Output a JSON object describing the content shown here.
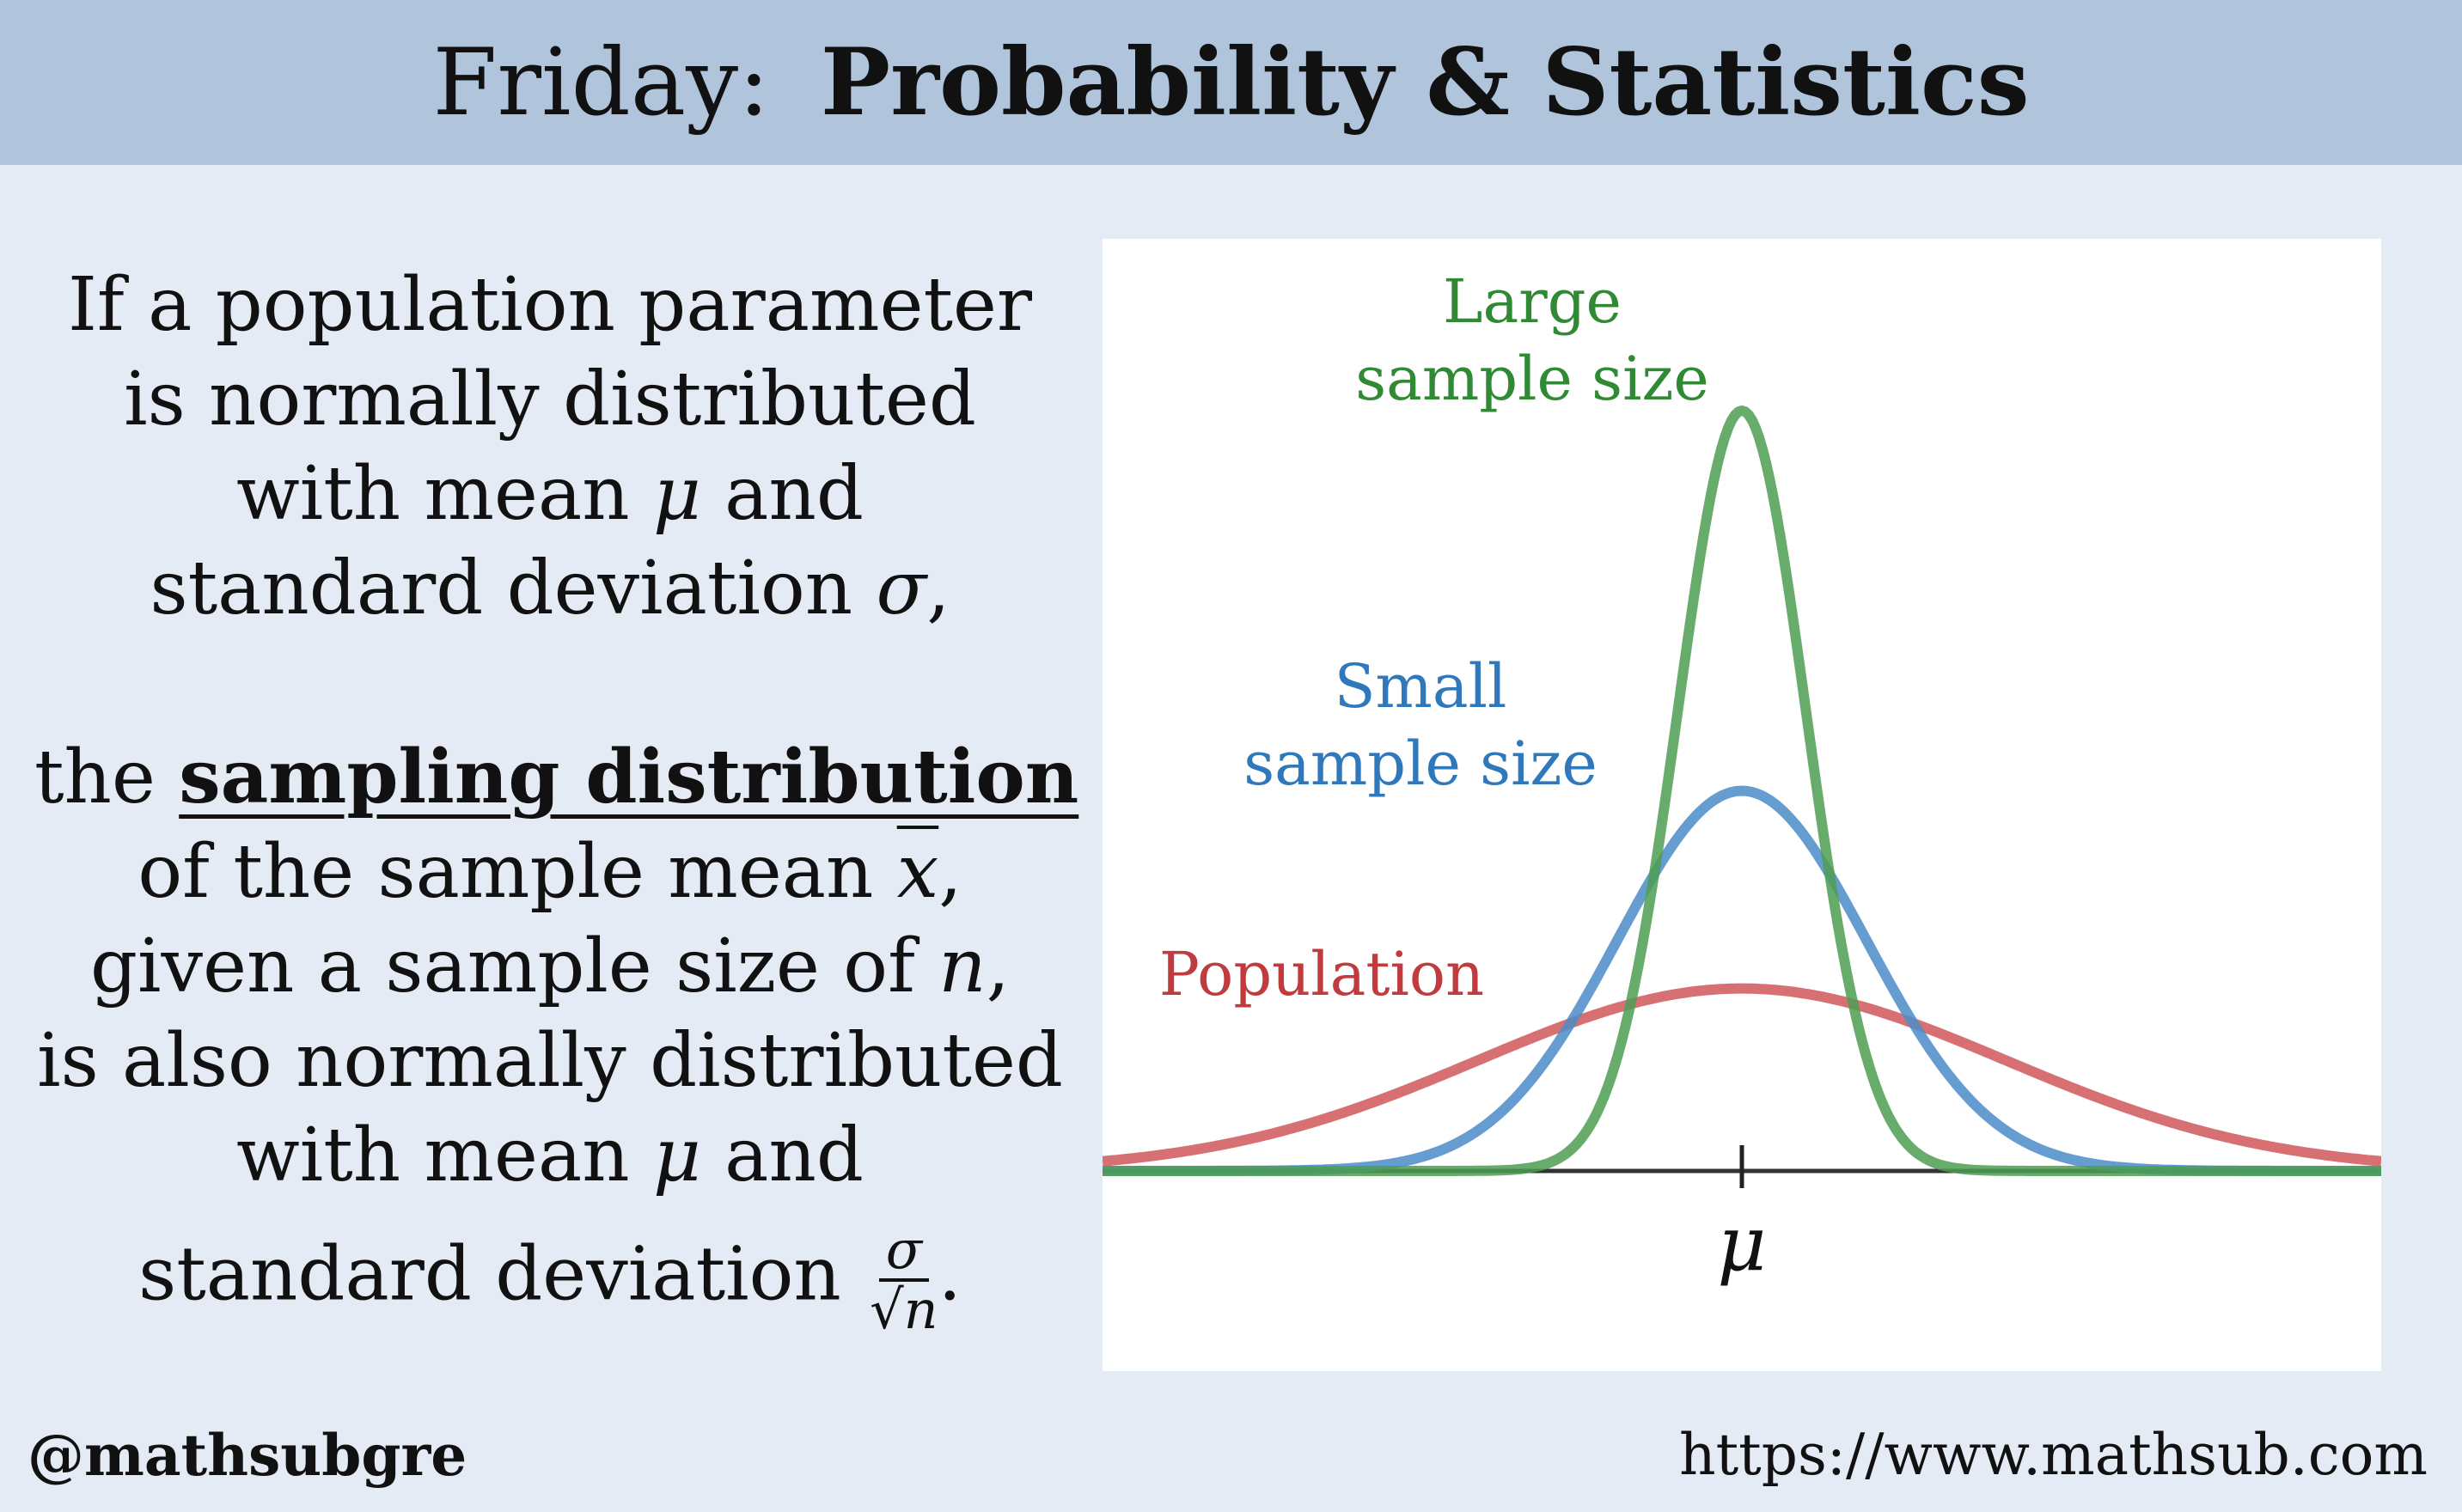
{
  "header": {
    "day": "Friday:",
    "topic": "Probability & Statistics"
  },
  "text": {
    "l1": "If a population parameter",
    "l2": "is normally distributed",
    "l3a": "with mean ",
    "l3sym": "μ",
    "l3b": " and",
    "l4a": "standard deviation ",
    "l4sym": "σ",
    "l4b": ",",
    "l5a": "the ",
    "l5em": "sampling distribution",
    "l6a": "of the sample mean ",
    "l6sym": "x",
    "l6b": ",",
    "l7a": "given a sample size of ",
    "l7sym": "n",
    "l7b": ",",
    "l8": "is also normally distributed",
    "l9a": "with mean ",
    "l9sym": "μ",
    "l9b": " and",
    "l10a": "standard deviation ",
    "l10num": "σ",
    "l10den": "√n",
    "l10b": "."
  },
  "chart_data": {
    "type": "line",
    "xlim": [
      -4,
      4
    ],
    "series": [
      {
        "name": "Population",
        "color": "#d0575b",
        "sigma": 1.65,
        "peak": 0.24
      },
      {
        "name": "Small\nsample size",
        "color": "#4a8cc8",
        "sigma": 0.78,
        "peak": 0.5
      },
      {
        "name": "Large\nsample size",
        "color": "#4e9e52",
        "sigma": 0.4,
        "peak": 1.0
      }
    ],
    "center_label": "μ"
  },
  "footer": {
    "handle": "@mathsubgre",
    "url": "https://www.mathsub.com"
  },
  "colors": {
    "header_bg": "#b0c4dc",
    "page_bg": "#e4ebf4"
  }
}
